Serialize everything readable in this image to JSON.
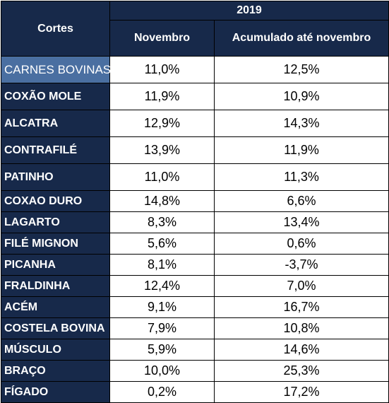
{
  "table": {
    "corner_label": "Cortes",
    "year": "2019",
    "col1": "Novembro",
    "col2": "Acumulado até novembro",
    "rows": [
      {
        "name": "CARNES BOVINAS",
        "nov": "11,0%",
        "acc": "12,5%"
      },
      {
        "name": "COXÃO MOLE",
        "nov": "11,9%",
        "acc": "10,9%"
      },
      {
        "name": "ALCATRA",
        "nov": "12,9%",
        "acc": "14,3%"
      },
      {
        "name": "CONTRAFILÉ",
        "nov": "13,9%",
        "acc": "11,9%"
      },
      {
        "name": "PATINHO",
        "nov": "11,0%",
        "acc": "11,3%"
      },
      {
        "name": "COXAO DURO",
        "nov": "14,8%",
        "acc": "6,6%"
      },
      {
        "name": "LAGARTO",
        "nov": "8,3%",
        "acc": "13,4%"
      },
      {
        "name": "FILÉ MIGNON",
        "nov": "5,6%",
        "acc": "0,6%"
      },
      {
        "name": "PICANHA",
        "nov": "8,1%",
        "acc": "-3,7%"
      },
      {
        "name": "FRALDINHA",
        "nov": "12,4%",
        "acc": "7,0%"
      },
      {
        "name": "ACÉM",
        "nov": "9,1%",
        "acc": "16,7%"
      },
      {
        "name": "COSTELA BOVINA",
        "nov": "7,9%",
        "acc": "10,8%"
      },
      {
        "name": "MÚSCULO",
        "nov": "5,9%",
        "acc": "14,6%"
      },
      {
        "name": "BRAÇO",
        "nov": "10,0%",
        "acc": "25,3%"
      },
      {
        "name": "FÍGADO",
        "nov": "0,2%",
        "acc": "17,2%"
      }
    ]
  }
}
